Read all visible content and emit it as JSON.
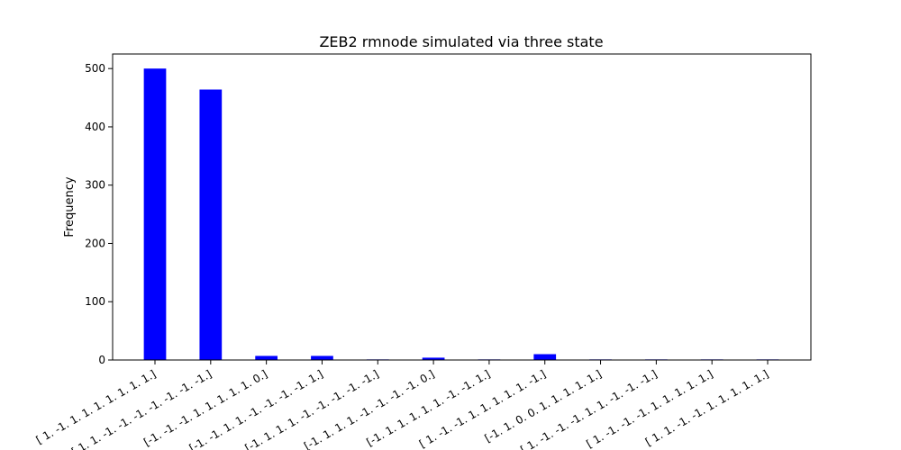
{
  "chart_data": {
    "type": "bar",
    "title": "ZEB2 rmnode simulated via three state",
    "xlabel": "",
    "ylabel": "Frequency",
    "ylim": [
      0,
      525
    ],
    "yticks": [
      0,
      100,
      200,
      300,
      400,
      500
    ],
    "bar_color": "#0000ff",
    "grid": false,
    "categories": [
      "[ 1. -1. 1. 1. 1. 1. 1. 1. 1.]",
      "[ 1. 1. -1. -1. -1. -1. -1. -1. -1.]",
      "[-1. -1. -1. 1. 1. 1. 1. 1. 0.]",
      "[-1. -1. 1. 1. -1. -1. -1. -1. 1.]",
      "[-1. 1. 1. 1. -1. -1. -1. -1. -1.]",
      "[-1. 1. 1. 1. -1. -1. -1. -1. 0.]",
      "[-1. 1. 1. 1. 1. 1. -1. -1. 1.]",
      "[ 1. -1. -1. 1. 1. 1. 1. 1. -1.]",
      "[-1. 1. 0. 0. 1. 1. 1. 1. 1.]",
      "[ 1. -1. -1. -1. 1. 1. -1. -1. -1.]",
      "[ 1. -1. -1. -1. 1. 1. 1. 1. 1.]",
      "[ 1. 1. -1. -1. 1. 1. 1. 1. 1.]"
    ],
    "values": [
      500,
      464,
      7,
      7,
      1,
      4,
      1,
      10,
      1,
      1,
      1,
      1
    ]
  }
}
